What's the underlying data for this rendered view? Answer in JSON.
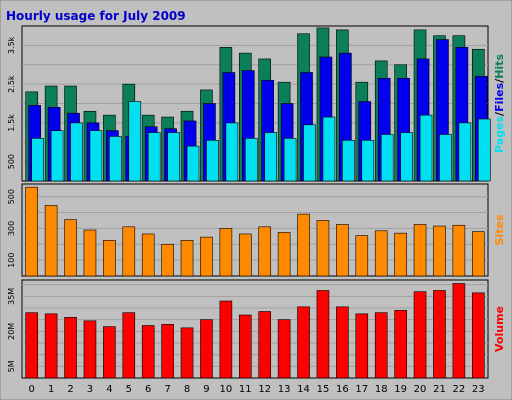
{
  "title": "Hourly usage for July 2009",
  "colors": {
    "background": "#c0c0c0",
    "panel": "#c0c0c0",
    "grid": "#a0a0a0",
    "title": "#0000cc",
    "hits": "#0b7e5a",
    "files": "#0000ee",
    "pages": "#00e0f0",
    "sites": "#ff8a00",
    "volume": "#ff0000"
  },
  "chart_data": [
    {
      "type": "bar",
      "panel": "hits-files-pages",
      "categories": [
        "0",
        "1",
        "2",
        "3",
        "4",
        "5",
        "6",
        "7",
        "8",
        "9",
        "10",
        "11",
        "12",
        "13",
        "14",
        "15",
        "16",
        "17",
        "18",
        "19",
        "20",
        "21",
        "22",
        "23"
      ],
      "ytick_labels": [
        "3.5k",
        "2.5k",
        "1.5k",
        "500"
      ],
      "side_labels": [
        "Pages",
        "Files",
        "Hits"
      ],
      "series": [
        {
          "name": "Hits",
          "values": [
            2300,
            2450,
            2450,
            1800,
            1700,
            2500,
            1700,
            1650,
            1800,
            2350,
            3450,
            3300,
            3150,
            2550,
            3800,
            3950,
            3900,
            2550,
            3100,
            3000,
            3900,
            3750,
            3750,
            3400
          ]
        },
        {
          "name": "Files",
          "values": [
            1950,
            1900,
            1750,
            1500,
            1300,
            1150,
            1400,
            1350,
            1550,
            2000,
            2800,
            2850,
            2600,
            2000,
            2800,
            3200,
            3300,
            2050,
            2650,
            2650,
            3150,
            3650,
            3450,
            2700
          ]
        },
        {
          "name": "Pages",
          "values": [
            1100,
            1300,
            1500,
            1300,
            1150,
            2050,
            1250,
            1250,
            900,
            1050,
            1500,
            1100,
            1250,
            1100,
            1450,
            1650,
            1050,
            1050,
            1200,
            1250,
            1700,
            1200,
            1500,
            1600
          ]
        }
      ]
    },
    {
      "type": "bar",
      "panel": "sites",
      "categories": [
        "0",
        "1",
        "2",
        "3",
        "4",
        "5",
        "6",
        "7",
        "8",
        "9",
        "10",
        "11",
        "12",
        "13",
        "14",
        "15",
        "16",
        "17",
        "18",
        "19",
        "20",
        "21",
        "22",
        "23"
      ],
      "ytick_labels": [
        "500",
        "300",
        "100"
      ],
      "side_labels": [
        "Sites"
      ],
      "series": [
        {
          "name": "Sites",
          "values": [
            560,
            445,
            355,
            290,
            225,
            310,
            265,
            200,
            225,
            245,
            300,
            265,
            310,
            275,
            390,
            350,
            325,
            255,
            285,
            270,
            325,
            315,
            320,
            280
          ]
        }
      ]
    },
    {
      "type": "bar",
      "panel": "volume",
      "categories": [
        "0",
        "1",
        "2",
        "3",
        "4",
        "5",
        "6",
        "7",
        "8",
        "9",
        "10",
        "11",
        "12",
        "13",
        "14",
        "15",
        "16",
        "17",
        "18",
        "19",
        "20",
        "21",
        "22",
        "23"
      ],
      "ytick_labels": [
        "35M",
        "20M",
        "5M"
      ],
      "side_labels": [
        "Volume"
      ],
      "series": [
        {
          "name": "Volume",
          "values": [
            28,
            27.5,
            26,
            24.5,
            22,
            28,
            22.5,
            23,
            21.5,
            25,
            33,
            27,
            28.5,
            25,
            30.5,
            37.5,
            30.5,
            27.5,
            28,
            29,
            37,
            37.5,
            40.5,
            36.5
          ]
        }
      ]
    }
  ]
}
